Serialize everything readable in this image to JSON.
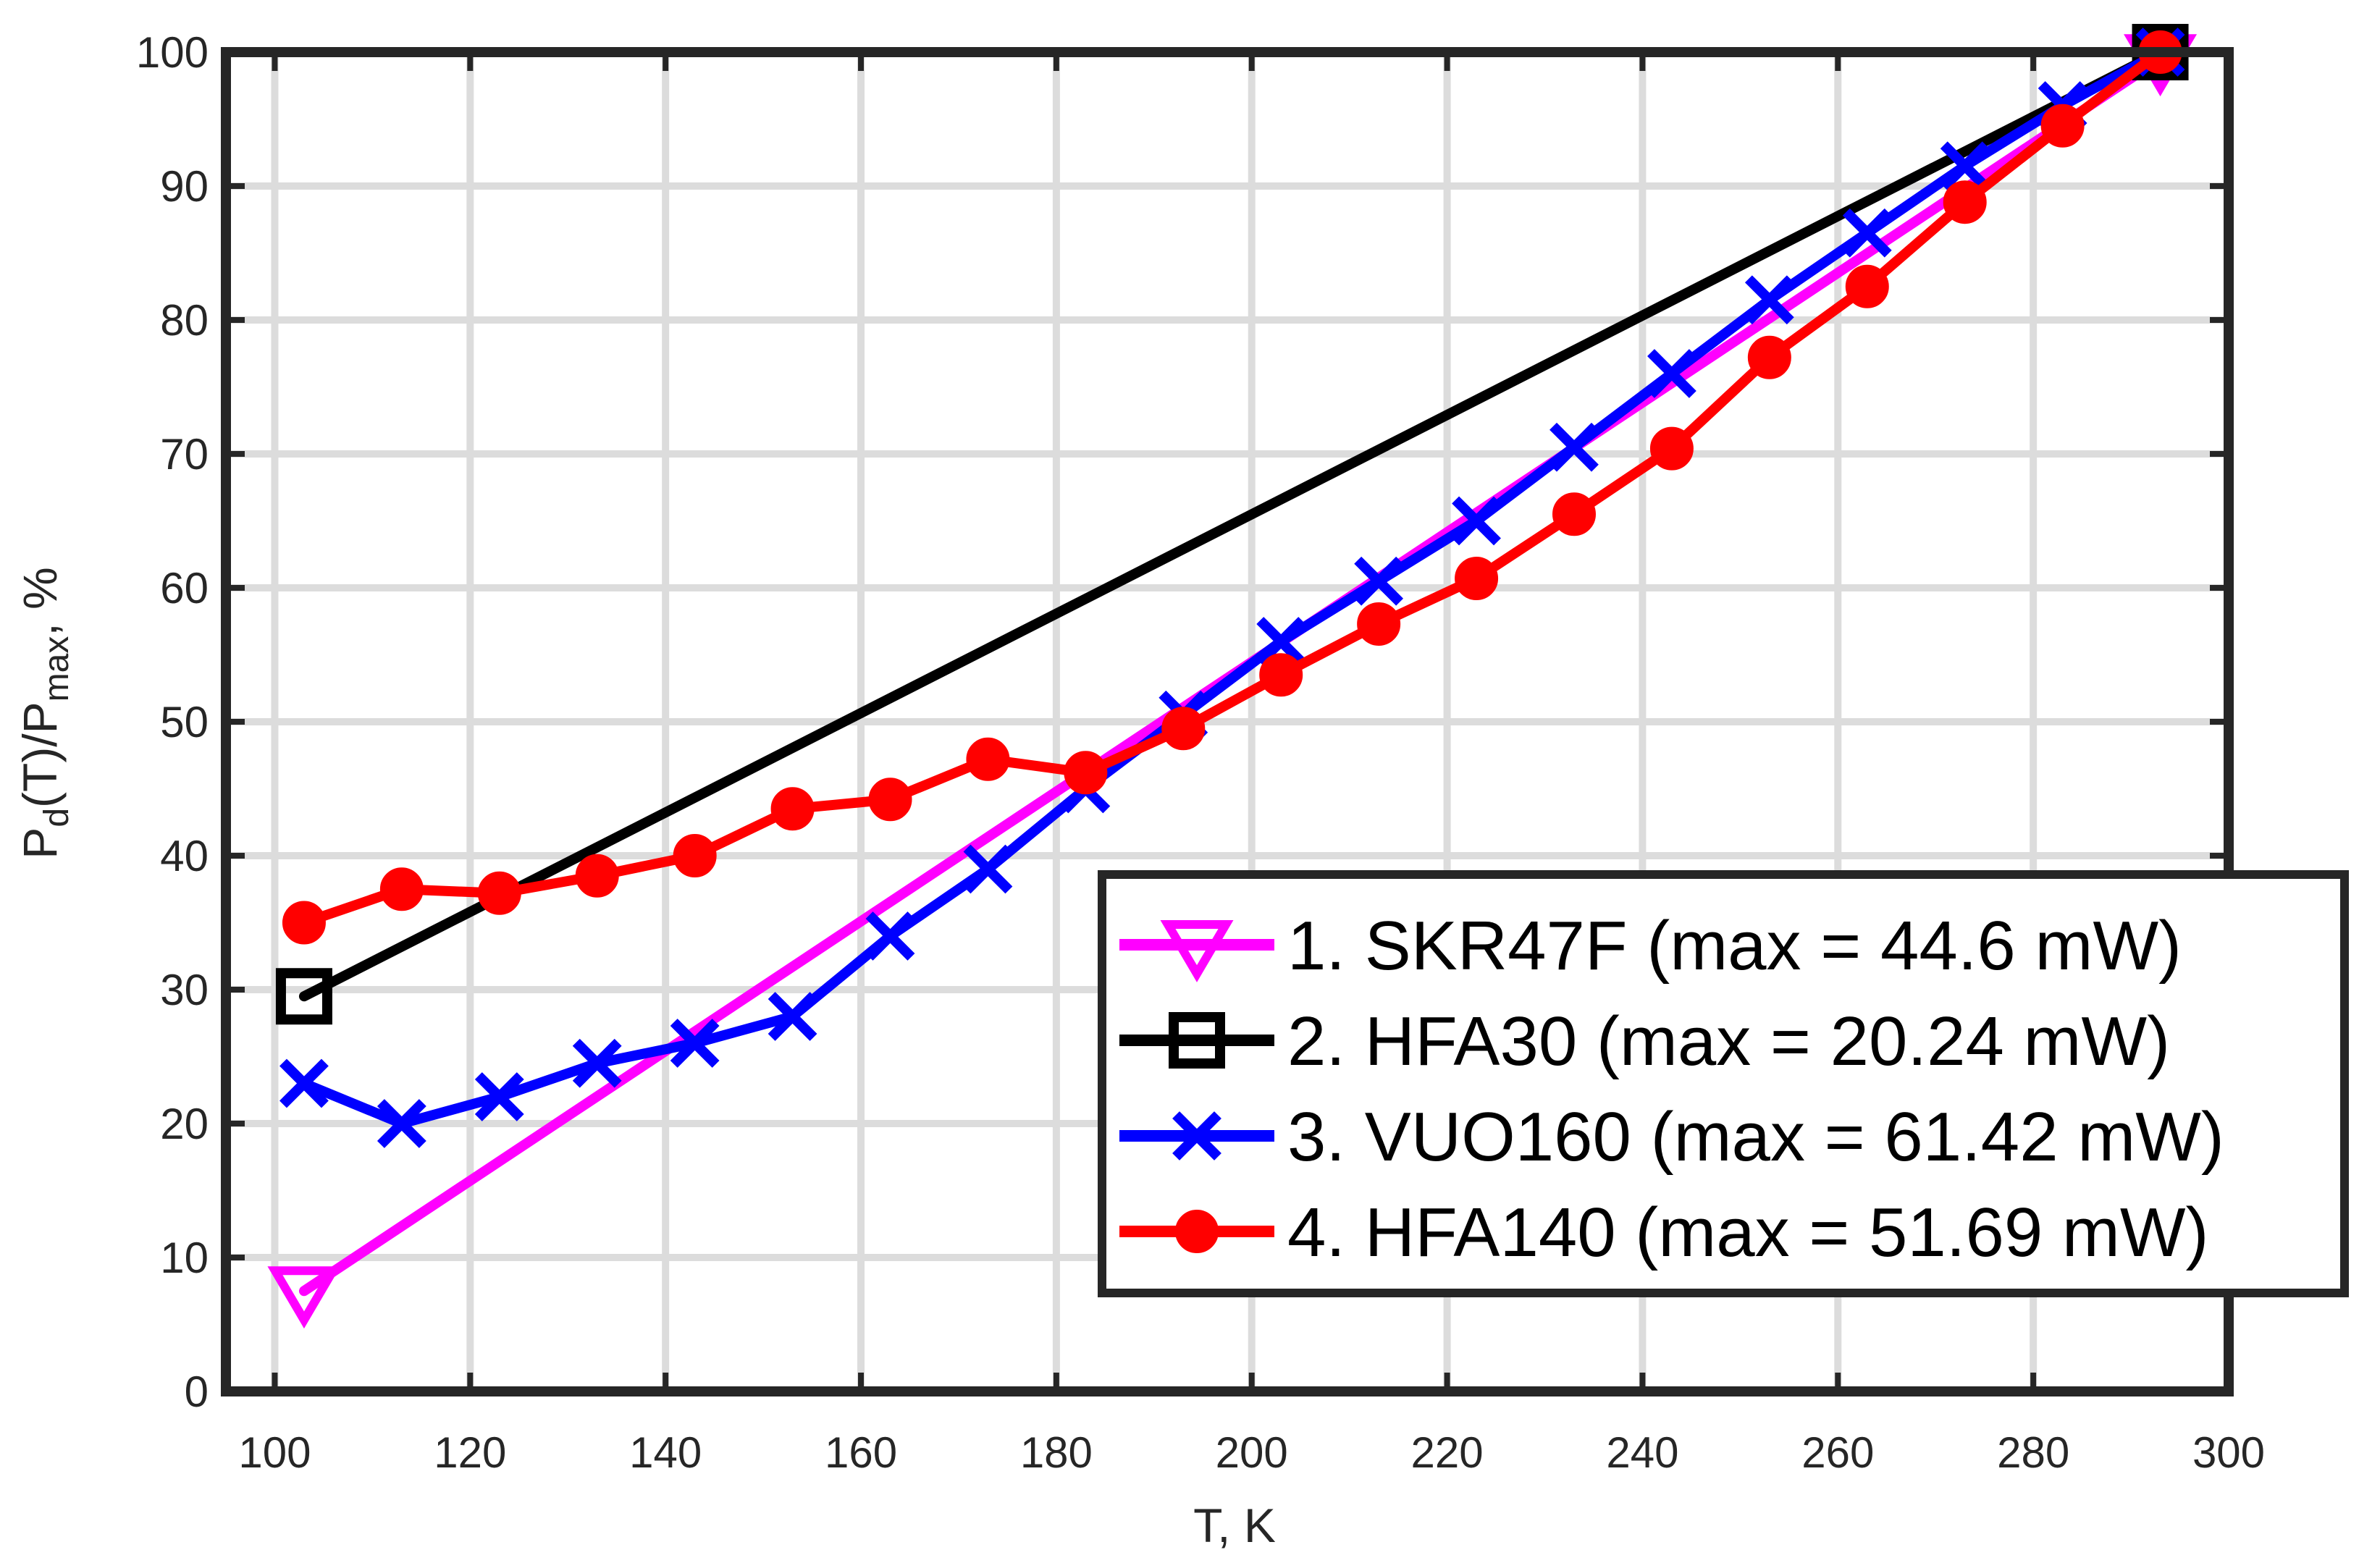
{
  "chart_data": {
    "type": "line",
    "title": "",
    "xlabel": "T, K",
    "ylabel_parts": {
      "P": "P",
      "d": "d",
      "mid": "(T)/P",
      "max": "max",
      "tail": ", %"
    },
    "xlim": [
      95,
      300
    ],
    "ylim": [
      0,
      100
    ],
    "xticks": [
      100,
      120,
      140,
      160,
      180,
      200,
      220,
      240,
      260,
      280,
      300
    ],
    "yticks": [
      0,
      10,
      20,
      30,
      40,
      50,
      60,
      70,
      80,
      90,
      100
    ],
    "grid": true,
    "legend_position": "bottom-right",
    "series": [
      {
        "name": "1. SKR47F (max = 44.6 mW)",
        "color": "#ff00ff",
        "marker": "triangle-down",
        "x": [
          103,
          293
        ],
        "y": [
          7.5,
          99.5
        ]
      },
      {
        "name": "2. HFA30 (max = 20.24 mW)",
        "color": "#000000",
        "marker": "square",
        "x": [
          103,
          293
        ],
        "y": [
          29.5,
          100
        ]
      },
      {
        "name": "3. VUO160 (max = 61.42 mW)",
        "color": "#0000ff",
        "marker": "x",
        "x": [
          103,
          113,
          123,
          133,
          143,
          153,
          163,
          173,
          183,
          193,
          203,
          213,
          223,
          233,
          243,
          253,
          263,
          273,
          283,
          293
        ],
        "y": [
          23,
          20,
          22,
          24.5,
          26,
          28,
          34,
          39,
          45,
          50.5,
          56,
          60.5,
          65,
          70.5,
          76,
          81.5,
          86.5,
          91.5,
          96,
          100
        ]
      },
      {
        "name": "4. HFA140 (max = 51.69 mW)",
        "color": "#ff0000",
        "marker": "circle",
        "x": [
          103,
          113,
          123,
          133,
          143,
          153,
          163,
          173,
          183,
          193,
          203,
          213,
          223,
          233,
          243,
          253,
          263,
          273,
          283,
          293
        ],
        "y": [
          35,
          37.5,
          37.2,
          38.5,
          40,
          43.5,
          44.2,
          47.2,
          46.2,
          49.5,
          53.5,
          57.3,
          60.7,
          65.5,
          70.4,
          77.2,
          82.5,
          88.8,
          94.5,
          100
        ]
      }
    ]
  }
}
